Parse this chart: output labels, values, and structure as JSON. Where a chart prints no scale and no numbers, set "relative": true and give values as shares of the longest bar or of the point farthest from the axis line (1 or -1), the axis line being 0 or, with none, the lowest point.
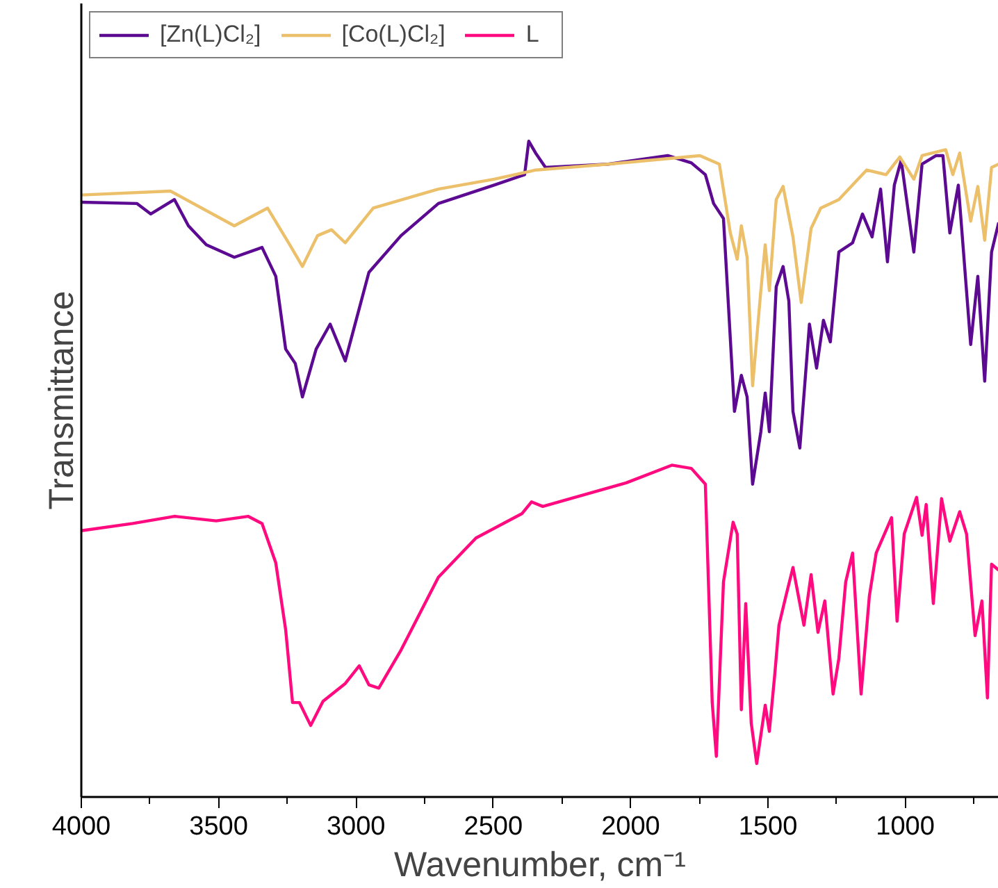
{
  "chart_data": {
    "type": "line",
    "xlabel": "Wavenumber, cm⁻¹",
    "ylabel": "Transmittance",
    "relative": true,
    "xlim": [
      4000,
      660
    ],
    "xticks": [
      4000,
      3500,
      3000,
      2500,
      2000,
      1500,
      1000
    ],
    "grid": false,
    "legend": "top left",
    "marker": "none",
    "line_style": "solid",
    "series": [
      {
        "name": "[Zn(L)Cl₂]",
        "color": "#5b0a91",
        "x": [
          4000,
          3798,
          3747,
          3661,
          3610,
          3545,
          3443,
          3342,
          3292,
          3256,
          3221,
          3195,
          3145,
          3094,
          3039,
          2953,
          2836,
          2700,
          2497,
          2386,
          2371,
          2346,
          2310,
          2082,
          1865,
          1779,
          1728,
          1698,
          1662,
          1622,
          1597,
          1576,
          1556,
          1526,
          1510,
          1495,
          1470,
          1445,
          1424,
          1409,
          1384,
          1349,
          1323,
          1298,
          1273,
          1242,
          1192,
          1156,
          1121,
          1090,
          1065,
          1040,
          1015,
          969,
          939,
          888,
          863,
          838,
          807,
          762,
          736,
          711,
          686,
          660
        ],
        "values": [
          0.907,
          0.905,
          0.889,
          0.911,
          0.871,
          0.842,
          0.823,
          0.838,
          0.794,
          0.683,
          0.661,
          0.61,
          0.683,
          0.721,
          0.665,
          0.8,
          0.856,
          0.905,
          0.933,
          0.949,
          1.0,
          0.982,
          0.96,
          0.965,
          0.978,
          0.967,
          0.949,
          0.905,
          0.882,
          0.588,
          0.643,
          0.61,
          0.477,
          0.557,
          0.616,
          0.557,
          0.778,
          0.809,
          0.756,
          0.588,
          0.532,
          0.721,
          0.654,
          0.727,
          0.694,
          0.831,
          0.845,
          0.889,
          0.854,
          0.927,
          0.816,
          0.933,
          0.971,
          0.831,
          0.965,
          0.978,
          0.978,
          0.86,
          0.933,
          0.69,
          0.794,
          0.634,
          0.831,
          0.876
        ]
      },
      {
        "name": "[Co(L)Cl₂]",
        "color": "#ecc06a",
        "x": [
          4000,
          3676,
          3443,
          3322,
          3241,
          3195,
          3140,
          3089,
          3039,
          2937,
          2700,
          2497,
          2346,
          2082,
          1748,
          1677,
          1637,
          1612,
          1597,
          1576,
          1556,
          1526,
          1510,
          1495,
          1470,
          1445,
          1409,
          1379,
          1343,
          1308,
          1242,
          1141,
          1070,
          1020,
          969,
          939,
          853,
          827,
          802,
          762,
          736,
          711,
          686,
          660
        ],
        "values": [
          0.918,
          0.924,
          0.871,
          0.898,
          0.842,
          0.809,
          0.856,
          0.865,
          0.845,
          0.898,
          0.927,
          0.942,
          0.956,
          0.965,
          0.978,
          0.965,
          0.86,
          0.82,
          0.871,
          0.823,
          0.627,
          0.772,
          0.842,
          0.772,
          0.911,
          0.931,
          0.854,
          0.754,
          0.867,
          0.898,
          0.911,
          0.956,
          0.949,
          0.976,
          0.942,
          0.978,
          0.987,
          0.949,
          0.982,
          0.878,
          0.931,
          0.849,
          0.96,
          0.965
        ]
      },
      {
        "name": "L",
        "color": "#ff0a7f",
        "x": [
          4000,
          3813,
          3661,
          3509,
          3393,
          3342,
          3292,
          3256,
          3231,
          3206,
          3165,
          3120,
          3039,
          2988,
          2953,
          2917,
          2836,
          2700,
          2563,
          2396,
          2361,
          2320,
          2016,
          1850,
          1779,
          1728,
          1703,
          1688,
          1662,
          1627,
          1612,
          1597,
          1581,
          1561,
          1541,
          1510,
          1495,
          1475,
          1460,
          1435,
          1409,
          1369,
          1343,
          1318,
          1293,
          1263,
          1242,
          1217,
          1192,
          1161,
          1131,
          1106,
          1050,
          1030,
          1004,
          959,
          939,
          924,
          898,
          868,
          838,
          802,
          777,
          746,
          721,
          701,
          686,
          660
        ],
        "values": [
          0.406,
          0.417,
          0.428,
          0.421,
          0.428,
          0.417,
          0.357,
          0.255,
          0.144,
          0.144,
          0.109,
          0.146,
          0.173,
          0.2,
          0.171,
          0.166,
          0.224,
          0.335,
          0.395,
          0.432,
          0.45,
          0.443,
          0.479,
          0.506,
          0.501,
          0.477,
          0.144,
          0.062,
          0.328,
          0.419,
          0.401,
          0.133,
          0.295,
          0.113,
          0.051,
          0.14,
          0.1,
          0.188,
          0.262,
          0.306,
          0.35,
          0.262,
          0.339,
          0.251,
          0.299,
          0.157,
          0.211,
          0.328,
          0.372,
          0.157,
          0.306,
          0.372,
          0.426,
          0.268,
          0.401,
          0.457,
          0.399,
          0.446,
          0.295,
          0.455,
          0.39,
          0.435,
          0.401,
          0.246,
          0.299,
          0.151,
          0.355,
          0.346
        ]
      }
    ]
  }
}
